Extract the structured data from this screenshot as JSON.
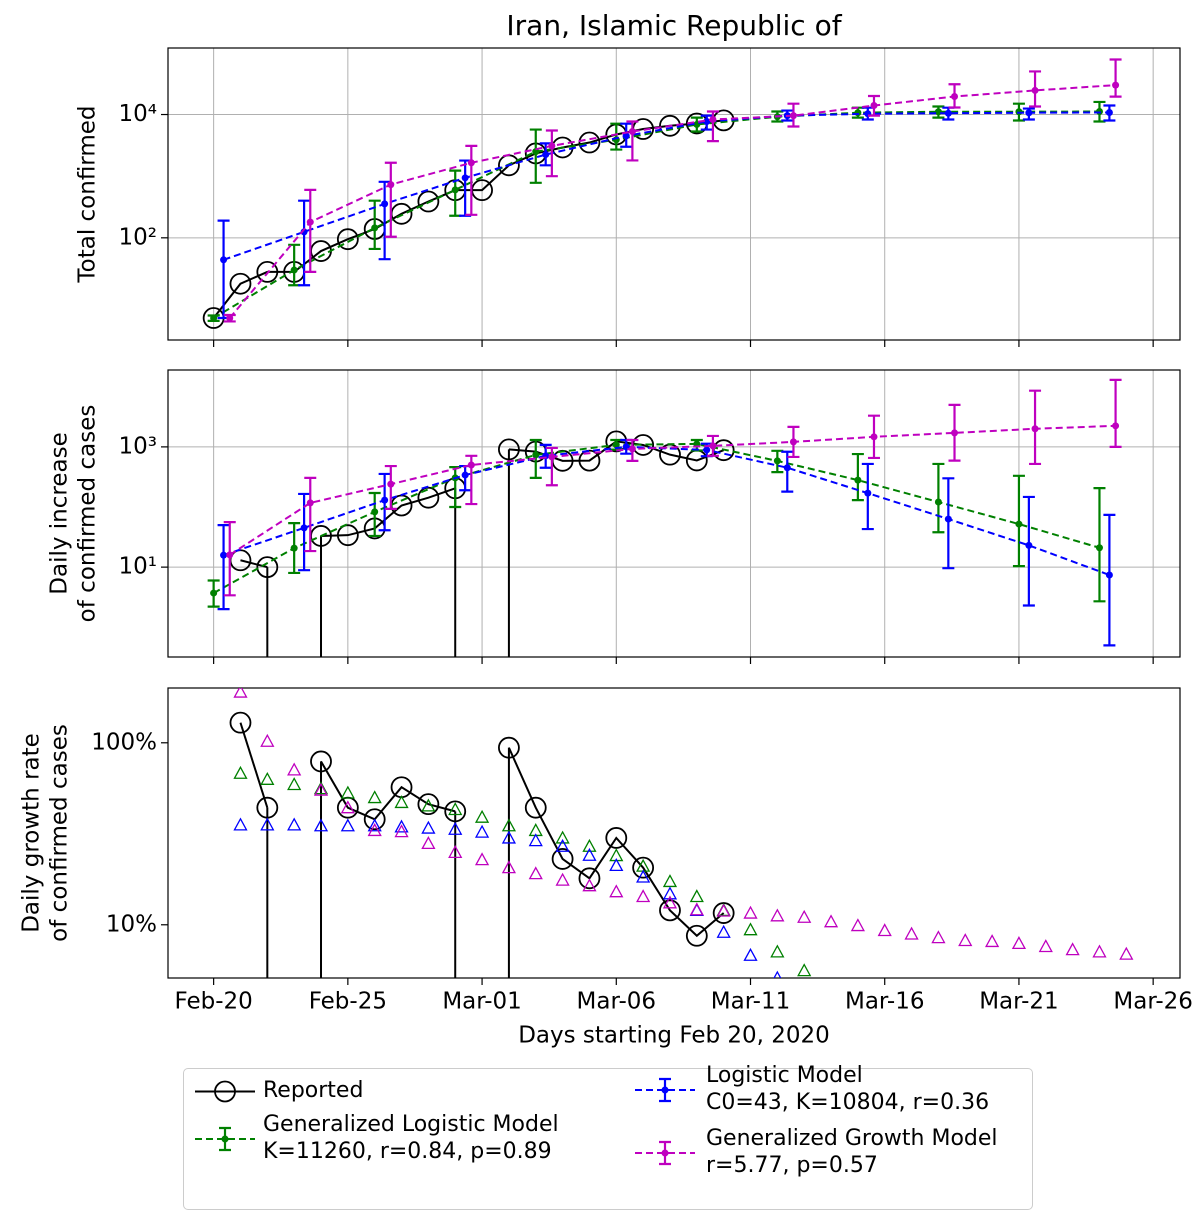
{
  "chart_data": [
    {
      "type": "line",
      "title": "Iran, Islamic Republic of",
      "ylabel": [
        "Total confirmed"
      ],
      "ylog": true,
      "grid": true,
      "xlim": [
        -1.7,
        36
      ],
      "xticks": [
        0,
        5,
        10,
        15,
        20,
        25,
        30,
        35
      ],
      "ylim": [
        2.2,
        120000
      ],
      "yticks": [
        {
          "value": 100,
          "label": "10²"
        },
        {
          "value": 10000,
          "label": "10⁴"
        }
      ],
      "series": [
        {
          "name": "Reported",
          "color": "#000000",
          "marker": "circle",
          "line": "solid",
          "x": [
            0,
            1,
            2,
            3,
            4,
            5,
            6,
            7,
            8,
            9,
            10,
            11,
            12,
            13,
            14,
            15,
            16,
            17,
            18,
            19
          ],
          "values": [
            5,
            18,
            28,
            28,
            61,
            95,
            139,
            245,
            388,
            593,
            593,
            1501,
            2336,
            2922,
            3513,
            4747,
            5823,
            6566,
            7161,
            8042
          ]
        },
        {
          "name": "Generalized Logistic Model\nK=11260, r=0.84, p=0.89",
          "color": "#008000",
          "marker": "dot",
          "line": "dashed",
          "x": [
            0,
            3,
            6,
            9,
            12,
            15,
            18,
            21,
            24,
            27,
            30,
            33
          ],
          "values": [
            5,
            30,
            145,
            600,
            2500,
            3900,
            6900,
            9200,
            10700,
            11100,
            11100,
            11200
          ],
          "lower": [
            4.5,
            17,
            66,
            228,
            780,
            2700,
            5300,
            7700,
            8900,
            8900,
            8000,
            7700
          ],
          "upper": [
            5.5,
            77,
            400,
            1230,
            5700,
            7100,
            8900,
            11200,
            12900,
            13500,
            15000,
            16000
          ]
        },
        {
          "name": "Logistic Model\nC0=43, K=10804, r=0.36",
          "color": "#0000ff",
          "marker": "dot",
          "line": "dashed",
          "x": [
            0.37,
            3.37,
            6.37,
            9.37,
            12.37,
            15.37,
            18.37,
            21.37,
            24.37,
            27.37,
            30.37,
            33.37
          ],
          "values": [
            44,
            125,
            355,
            940,
            2240,
            4500,
            7700,
            9600,
            10300,
            10500,
            10700,
            10800
          ],
          "lower": [
            5,
            17,
            45,
            228,
            1500,
            3000,
            5700,
            8000,
            8300,
            8300,
            8300,
            8000
          ],
          "upper": [
            190,
            400,
            810,
            1790,
            3400,
            7100,
            9600,
            11600,
            12900,
            12900,
            12500,
            14000
          ]
        },
        {
          "name": "Generalized Growth Model\nr=5.77, p=0.57",
          "color": "#bf00bf",
          "marker": "dot",
          "line": "dashed",
          "x": [
            0.6,
            3.6,
            6.6,
            9.6,
            12.6,
            15.6,
            18.6,
            21.6,
            24.6,
            27.6,
            30.6,
            33.6
          ],
          "values": [
            5,
            180,
            730,
            1650,
            3100,
            5300,
            8300,
            9600,
            14000,
            19600,
            24600,
            30000
          ],
          "lower": [
            4.4,
            28,
            104,
            236,
            1000,
            1800,
            3700,
            6400,
            9600,
            13000,
            13500,
            19500
          ],
          "upper": [
            5.6,
            600,
            1650,
            3100,
            5500,
            7700,
            11200,
            15000,
            20000,
            31000,
            50000,
            78000
          ]
        }
      ]
    },
    {
      "type": "line",
      "ylabel": [
        "Daily increase",
        "of confirmed cases"
      ],
      "ylog": true,
      "grid": true,
      "xlim": [
        -1.7,
        36
      ],
      "xticks": [
        0,
        5,
        10,
        15,
        20,
        25,
        30,
        35
      ],
      "ylim": [
        0.32,
        19000
      ],
      "yticks": [
        {
          "value": 10,
          "label": "10¹"
        },
        {
          "value": 1000,
          "label": "10³"
        }
      ],
      "series": [
        {
          "color": "#000000",
          "marker": "circle",
          "line": "solid",
          "x": [
            1,
            2,
            3,
            4,
            5,
            6,
            7,
            8,
            9,
            10,
            11,
            12,
            13,
            14,
            15,
            16,
            17,
            18,
            19
          ],
          "values": [
            13,
            10,
            0,
            33,
            34,
            44,
            106,
            143,
            205,
            0,
            908,
            835,
            586,
            591,
            1234,
            1076,
            743,
            595,
            881
          ]
        },
        {
          "color": "#008000",
          "marker": "dot",
          "line": "dashed",
          "x": [
            0,
            3,
            6,
            9,
            12,
            15,
            18,
            21,
            24,
            27,
            30,
            33
          ],
          "values": [
            3.7,
            20.7,
            83,
            305,
            735,
            1080,
            1120,
            585,
            280,
            121,
            52,
            21
          ],
          "lower": [
            2.2,
            8,
            33,
            100,
            305,
            900,
            870,
            380,
            130,
            38,
            10.4,
            2.7
          ],
          "upper": [
            6,
            54,
            171,
            460,
            1300,
            1300,
            1300,
            860,
            760,
            520,
            330,
            206
          ]
        },
        {
          "color": "#0000ff",
          "marker": "dot",
          "line": "dashed",
          "x": [
            0.37,
            3.37,
            6.37,
            9.37,
            12.37,
            15.37,
            18.37,
            21.37,
            24.37,
            27.37,
            30.37,
            33.37
          ],
          "values": [
            15.8,
            45,
            130,
            340,
            710,
            1000,
            890,
            450,
            170,
            63,
            23,
            7.4
          ],
          "lower": [
            2,
            8.9,
            41,
            190,
            450,
            770,
            700,
            180,
            43,
            9.6,
            2.3,
            0.5
          ],
          "upper": [
            50,
            165,
            355,
            480,
            1080,
            1300,
            1130,
            830,
            520,
            300,
            147,
            74
          ]
        },
        {
          "color": "#bf00bf",
          "marker": "dot",
          "line": "dashed",
          "x": [
            0.6,
            3.6,
            6.6,
            9.6,
            12.6,
            15.6,
            18.6,
            21.6,
            24.6,
            27.6,
            30.6,
            33.6
          ],
          "values": [
            16,
            117,
            240,
            500,
            680,
            925,
            1040,
            1210,
            1470,
            1710,
            2000,
            2240
          ],
          "lower": [
            3.4,
            18.5,
            93,
            112,
            230,
            585,
            710,
            680,
            655,
            590,
            520,
            1000
          ],
          "upper": [
            56,
            305,
            480,
            710,
            960,
            1300,
            1520,
            2150,
            3300,
            5000,
            8600,
            13000
          ]
        }
      ]
    },
    {
      "type": "line",
      "ylabel": [
        "Daily growth rate",
        "of confirmed cases"
      ],
      "xlabel": "Days starting Feb 20, 2020",
      "ylog": true,
      "grid": false,
      "xlim": [
        -1.7,
        36
      ],
      "xticks": [
        {
          "value": 0,
          "label": "Feb-20"
        },
        {
          "value": 5,
          "label": "Feb-25"
        },
        {
          "value": 10,
          "label": "Mar-01"
        },
        {
          "value": 15,
          "label": "Mar-06"
        },
        {
          "value": 20,
          "label": "Mar-11"
        },
        {
          "value": 25,
          "label": "Mar-16"
        },
        {
          "value": 30,
          "label": "Mar-21"
        },
        {
          "value": 35,
          "label": "Mar-26"
        }
      ],
      "ylim": [
        5.1,
        200
      ],
      "yticks": [
        {
          "value": 10,
          "label": "10%"
        },
        {
          "value": 100,
          "label": "100%"
        }
      ],
      "series": [
        {
          "color": "#000000",
          "marker": "circle",
          "line": "solid",
          "x": [
            1,
            2,
            3,
            4,
            5,
            6,
            7,
            8,
            9,
            10,
            11,
            12,
            13,
            14,
            15,
            16,
            17,
            18,
            19
          ],
          "values": [
            129,
            44,
            0,
            79,
            44,
            38,
            57,
            46,
            42,
            0,
            94,
            44,
            23,
            18,
            30,
            20.6,
            12,
            8.7,
            11.6
          ]
        },
        {
          "color": "#008000",
          "marker": "triangle",
          "line": "none",
          "x": [
            1,
            2,
            3,
            4,
            5,
            6,
            7,
            8,
            9,
            10,
            11,
            12,
            13,
            14,
            15,
            16,
            17,
            18,
            19,
            20,
            21,
            22
          ],
          "values": [
            68,
            63,
            59,
            56,
            53,
            50,
            47,
            45,
            43,
            39,
            35,
            33,
            30,
            27,
            24,
            21,
            17.3,
            14.3,
            12,
            9.4,
            7.1,
            5.6
          ]
        },
        {
          "color": "#0000ff",
          "marker": "triangle",
          "line": "none",
          "x": [
            1,
            2,
            3,
            4,
            5,
            6,
            7,
            8,
            9,
            10,
            11,
            12,
            13,
            14,
            15,
            16,
            17,
            18,
            19,
            20,
            21
          ],
          "values": [
            35.4,
            35.4,
            35.4,
            35,
            35,
            35,
            34.5,
            34,
            33.5,
            32.3,
            30,
            29,
            27,
            24.1,
            21.2,
            18.3,
            14.8,
            12,
            9.1,
            6.8,
            5.1
          ]
        },
        {
          "color": "#bf00bf",
          "marker": "triangle",
          "line": "none",
          "x": [
            1,
            2,
            3,
            4,
            5,
            6,
            7,
            8,
            9,
            10,
            11,
            12,
            13,
            14,
            15,
            16,
            17,
            18,
            19,
            20,
            21,
            22,
            23,
            24,
            25,
            26,
            27,
            28,
            29,
            30,
            31,
            32,
            33,
            34
          ],
          "values": [
            190,
            102,
            71,
            55,
            44,
            33,
            32.5,
            28,
            25,
            22.8,
            20.6,
            19.1,
            17.6,
            16.4,
            15.2,
            14.3,
            13.2,
            12.1,
            11.9,
            11.6,
            11.2,
            11,
            10.4,
            9.9,
            9.3,
            8.9,
            8.5,
            8.2,
            8.1,
            7.9,
            7.6,
            7.3,
            7.1,
            6.9
          ]
        }
      ]
    }
  ]
}
